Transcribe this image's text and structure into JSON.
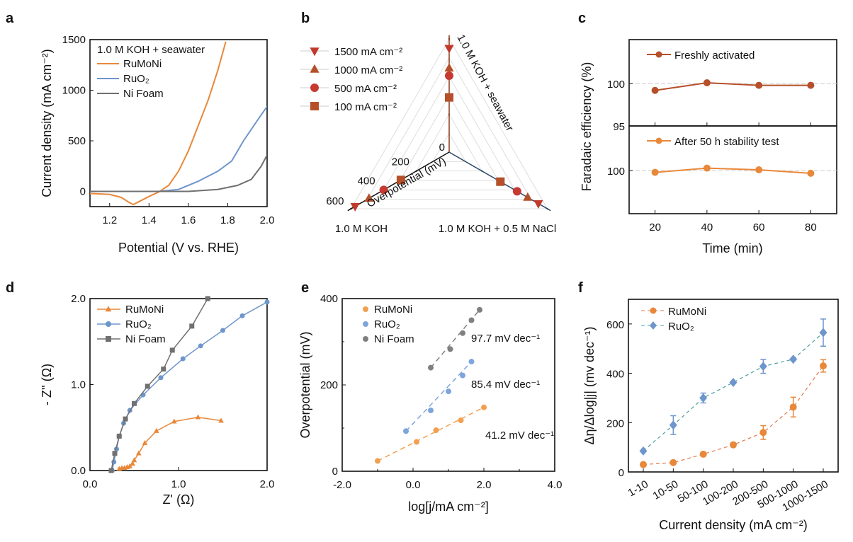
{
  "chart_data": [
    {
      "panel": "a",
      "type": "line",
      "xlabel": "Potential (V vs. RHE)",
      "ylabel": "Current density (mA cm⁻²)",
      "xlim": [
        1.1,
        2.0
      ],
      "ylim": [
        -150,
        1500
      ],
      "xticks": [
        1.2,
        1.4,
        1.6,
        1.8,
        2.0
      ],
      "xticklabels": [
        "1.2",
        "1.4",
        "1.6",
        "1.8",
        "2.0"
      ],
      "yticks": [
        0,
        500,
        1000,
        1500
      ],
      "yticklabels": [
        "0",
        "500",
        "1000",
        "1500"
      ],
      "legend_title": "1.0 M KOH + seawater",
      "legend_position": "top-left",
      "series": [
        {
          "name": "RuMoNi",
          "color": "#e8883a",
          "x": [
            1.1,
            1.2,
            1.26,
            1.3,
            1.32,
            1.35,
            1.4,
            1.45,
            1.5,
            1.55,
            1.6,
            1.65,
            1.7,
            1.75,
            1.79
          ],
          "y": [
            -20,
            -30,
            -60,
            -110,
            -130,
            -100,
            -50,
            -5,
            60,
            200,
            400,
            650,
            900,
            1200,
            1480
          ]
        },
        {
          "name": "RuO₂",
          "color": "#6e96cc",
          "x": [
            1.1,
            1.45,
            1.55,
            1.65,
            1.75,
            1.82,
            1.88,
            1.95,
            2.0
          ],
          "y": [
            0,
            0,
            20,
            100,
            200,
            300,
            500,
            700,
            840
          ]
        },
        {
          "name": "Ni Foam",
          "color": "#707070",
          "x": [
            1.1,
            1.6,
            1.75,
            1.85,
            1.92,
            1.97,
            2.0
          ],
          "y": [
            0,
            0,
            20,
            60,
            120,
            250,
            360
          ]
        }
      ]
    },
    {
      "panel": "b",
      "type": "radar",
      "axis_label": "Overpotential (mV)",
      "axes": [
        "1.0 M KOH + seawater",
        "1.0 M KOH",
        "1.0 M KOH + 0.5 M NaCl"
      ],
      "rticks": [
        0,
        200,
        400,
        600
      ],
      "rticklabels": [
        "0",
        "200",
        "400",
        "600"
      ],
      "rmax": 620,
      "axis_colors": [
        "#8b3a1a",
        "#111111",
        "#2c4a6a"
      ],
      "series": [
        {
          "name": "1500 mA cm⁻²",
          "marker": "triangle-down",
          "color": "#c0392b",
          "values": [
            550,
            575,
            545
          ]
        },
        {
          "name": "1000 mA cm⁻²",
          "marker": "triangle-up",
          "color": "#b5502a",
          "values": [
            445,
            490,
            480
          ]
        },
        {
          "name": "500 mA cm⁻²",
          "marker": "circle",
          "color": "#c63a32",
          "values": [
            405,
            400,
            415
          ]
        },
        {
          "name": "100 mA cm⁻²",
          "marker": "square",
          "color": "#b5502a",
          "values": [
            290,
            295,
            313
          ]
        }
      ]
    },
    {
      "panel": "c",
      "type": "line",
      "xlabel": "Time (min)",
      "ylabel": "Faradaic efficiency (%)",
      "xlim": [
        10,
        90
      ],
      "xticks": [
        20,
        40,
        60,
        80
      ],
      "xticklabels": [
        "20",
        "40",
        "60",
        "80"
      ],
      "ylim": [
        95,
        105.2
      ],
      "reference_line": 100,
      "subplots": [
        {
          "name": "Freshly activated",
          "color": "#b5502a",
          "yticks": [
            95,
            100
          ],
          "yticklabels": [
            "95",
            "100"
          ],
          "x": [
            20,
            40,
            60,
            80
          ],
          "y": [
            99.2,
            100.1,
            99.8,
            99.8
          ]
        },
        {
          "name": "After 50 h stability test",
          "color": "#e8883a",
          "yticks": [
            100
          ],
          "yticklabels": [
            "100"
          ],
          "x": [
            20,
            40,
            60,
            80
          ],
          "y": [
            99.8,
            100.3,
            100.1,
            99.7
          ]
        }
      ]
    },
    {
      "panel": "d",
      "type": "line",
      "xlabel": "Z' (Ω)",
      "ylabel": "- Z'' (Ω)",
      "xlim": [
        0,
        2.0
      ],
      "ylim": [
        0,
        2.0
      ],
      "xticks": [
        0,
        1,
        2
      ],
      "xticklabels": [
        "0.0",
        "1.0",
        "2.0"
      ],
      "yticks": [
        0,
        1,
        2
      ],
      "yticklabels": [
        "0.0",
        "1.0",
        "2.0"
      ],
      "legend_position": "top-left",
      "series": [
        {
          "name": "RuMoNi",
          "marker": "triangle-up",
          "color": "#e8883a",
          "x": [
            0.33,
            0.36,
            0.39,
            0.42,
            0.45,
            0.48,
            0.5,
            0.55,
            0.62,
            0.75,
            0.95,
            1.22,
            1.48
          ],
          "y": [
            0.02,
            0.03,
            0.03,
            0.04,
            0.05,
            0.08,
            0.12,
            0.2,
            0.32,
            0.46,
            0.57,
            0.62,
            0.58
          ]
        },
        {
          "name": "RuO₂",
          "marker": "circle",
          "color": "#6e96cc",
          "x": [
            0.25,
            0.27,
            0.3,
            0.33,
            0.38,
            0.45,
            0.6,
            0.8,
            1.05,
            1.25,
            1.5,
            1.72,
            2.0
          ],
          "y": [
            0,
            0.1,
            0.25,
            0.4,
            0.55,
            0.7,
            0.88,
            1.08,
            1.3,
            1.45,
            1.63,
            1.8,
            1.96
          ]
        },
        {
          "name": "Ni Foam",
          "marker": "square",
          "color": "#707070",
          "x": [
            0.24,
            0.28,
            0.33,
            0.4,
            0.5,
            0.65,
            0.83,
            0.93,
            1.15,
            1.33
          ],
          "y": [
            0,
            0.2,
            0.4,
            0.6,
            0.78,
            0.98,
            1.18,
            1.4,
            1.68,
            2.0
          ]
        }
      ]
    },
    {
      "panel": "e",
      "type": "scatter",
      "xlabel": "log[j/mA cm⁻²]",
      "ylabel": "Overpotential (mV)",
      "xlim": [
        -2,
        4
      ],
      "ylim": [
        0,
        400
      ],
      "xticks": [
        -2,
        0,
        2,
        4
      ],
      "xticklabels": [
        "-2.0",
        "0.0",
        "2.0",
        "4.0"
      ],
      "yticks": [
        0,
        200,
        400
      ],
      "yticklabels": [
        "0",
        "200",
        "400"
      ],
      "legend_position": "top-left",
      "series": [
        {
          "name": "RuMoNi",
          "color": "#f0a050",
          "slope_label": "41.2 mV dec⁻¹",
          "x": [
            -1.0,
            0.1,
            0.65,
            1.35,
            2.0
          ],
          "y": [
            24,
            68,
            95,
            118,
            148
          ]
        },
        {
          "name": "RuO₂",
          "color": "#7ea6dc",
          "slope_label": "85.4 mV dec⁻¹",
          "x": [
            -0.2,
            0.5,
            1.0,
            1.4,
            1.65
          ],
          "y": [
            93,
            141,
            185,
            222,
            254
          ]
        },
        {
          "name": "Ni Foam",
          "color": "#808080",
          "slope_label": "97.7 mV dec⁻¹",
          "x": [
            0.5,
            1.05,
            1.4,
            1.65,
            1.88
          ],
          "y": [
            240,
            283,
            320,
            350,
            374
          ]
        }
      ]
    },
    {
      "panel": "f",
      "type": "line",
      "xlabel": "Current density (mA cm⁻²)",
      "ylabel": "Δη/Δlog|j| (mv dec⁻¹)",
      "categories": [
        "1-10",
        "10-50",
        "50-100",
        "100-200",
        "200-500",
        "500-1000",
        "1000-1500"
      ],
      "ylim": [
        0,
        700
      ],
      "yticks": [
        0,
        200,
        400,
        600
      ],
      "yticklabels": [
        "0",
        "200",
        "400",
        "600"
      ],
      "legend_position": "top-left",
      "series": [
        {
          "name": "RuMoNi",
          "marker": "circle",
          "color": "#e8883a",
          "line_color": "#e07a50",
          "values": [
            30,
            38,
            72,
            110,
            160,
            263,
            430
          ],
          "errors": [
            0,
            5,
            5,
            8,
            28,
            40,
            25
          ]
        },
        {
          "name": "RuO₂",
          "marker": "diamond",
          "color": "#6e96cc",
          "line_color": "#4aa0a0",
          "values": [
            85,
            190,
            300,
            363,
            428,
            457,
            565
          ],
          "errors": [
            0,
            38,
            20,
            5,
            28,
            5,
            55
          ]
        }
      ]
    }
  ]
}
